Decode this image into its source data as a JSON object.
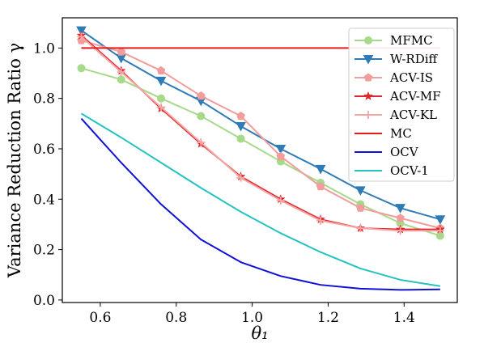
{
  "chart_data": {
    "type": "line",
    "xlabel": "θ₁",
    "ylabel": "Variance Reduction Ratio  γ",
    "xlim": [
      0.5,
      1.54
    ],
    "ylim": [
      -0.01,
      1.12
    ],
    "xticks": [
      "0.6",
      "0.8",
      "1.0",
      "1.2",
      "1.4"
    ],
    "yticks": [
      "0.0",
      "0.2",
      "0.4",
      "0.6",
      "0.8",
      "1.0"
    ],
    "legend_position": "top-right",
    "grid": false,
    "x": [
      0.55,
      0.655,
      0.76,
      0.865,
      0.97,
      1.075,
      1.18,
      1.285,
      1.39,
      1.495
    ],
    "series": [
      {
        "name": "MFMC",
        "color": "#a6d98a",
        "marker": "circle",
        "values": [
          0.92,
          0.875,
          0.8,
          0.73,
          0.64,
          0.55,
          0.465,
          0.38,
          0.305,
          0.255
        ]
      },
      {
        "name": "W-RDiff",
        "color": "#2e7bb6",
        "marker": "triangle-down",
        "values": [
          1.07,
          0.96,
          0.87,
          0.79,
          0.69,
          0.6,
          0.52,
          0.435,
          0.365,
          0.32
        ]
      },
      {
        "name": "ACV-IS",
        "color": "#f29c9c",
        "marker": "pentagon",
        "values": [
          1.03,
          0.985,
          0.91,
          0.81,
          0.73,
          0.57,
          0.45,
          0.365,
          0.325,
          0.285
        ]
      },
      {
        "name": "ACV-MF",
        "color": "#e0262b",
        "marker": "star",
        "values": [
          1.05,
          0.91,
          0.76,
          0.62,
          0.49,
          0.4,
          0.32,
          0.285,
          0.28,
          0.28
        ]
      },
      {
        "name": "ACV-KL",
        "color": "#f4a6a6",
        "marker": "plus",
        "values": [
          1.045,
          0.905,
          0.765,
          0.625,
          0.485,
          0.395,
          0.315,
          0.285,
          0.275,
          0.275
        ]
      },
      {
        "name": "MC",
        "color": "#e31a1c",
        "marker": "none",
        "values": [
          1.0,
          1.0,
          1.0,
          1.0,
          1.0,
          1.0,
          1.0,
          1.0,
          1.0,
          1.0
        ]
      },
      {
        "name": "OCV",
        "color": "#1010d8",
        "marker": "none",
        "values": [
          0.72,
          0.545,
          0.38,
          0.24,
          0.15,
          0.095,
          0.06,
          0.045,
          0.04,
          0.042
        ]
      },
      {
        "name": "OCV-1",
        "color": "#26c2c2",
        "marker": "none",
        "values": [
          0.74,
          0.645,
          0.545,
          0.445,
          0.35,
          0.265,
          0.19,
          0.125,
          0.08,
          0.055
        ]
      }
    ]
  }
}
